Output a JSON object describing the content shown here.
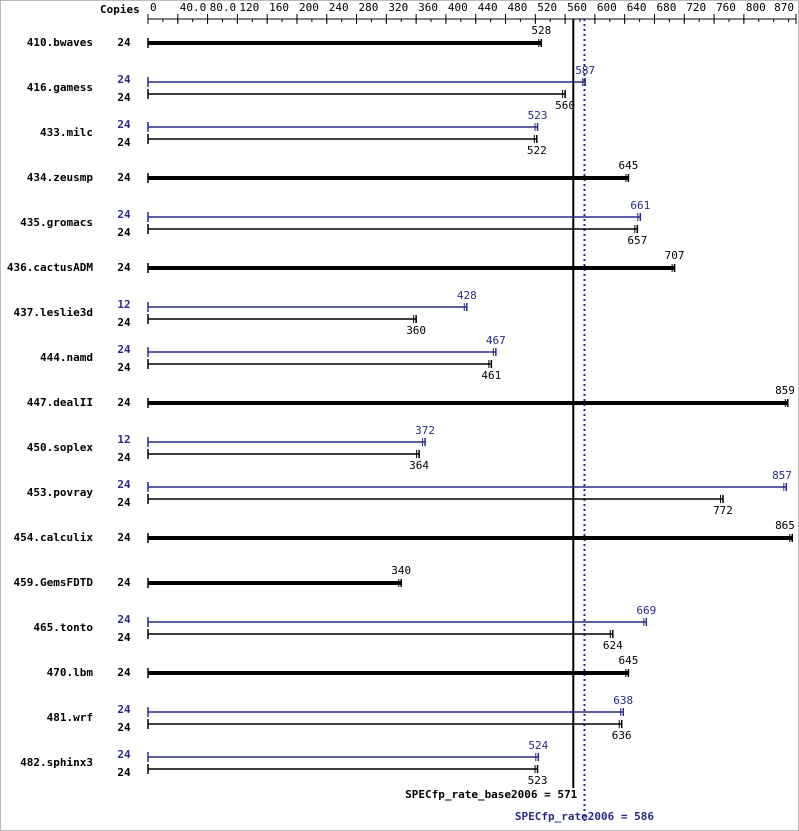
{
  "chart_data": {
    "type": "spec-bar",
    "copies_label": "Copies",
    "categories": [
      "410.bwaves",
      "416.gamess",
      "433.milc",
      "434.zeusmp",
      "435.gromacs",
      "436.cactusADM",
      "437.leslie3d",
      "444.namd",
      "447.dealII",
      "450.soplex",
      "453.povray",
      "454.calculix",
      "459.GemsFDTD",
      "465.tonto",
      "470.lbm",
      "481.wrf",
      "482.sphinx3"
    ],
    "series": [
      {
        "color": "#000000",
        "copies": [
          24,
          24,
          24,
          24,
          24,
          24,
          24,
          24,
          24,
          24,
          24,
          24,
          24,
          24,
          24,
          24,
          24
        ],
        "values": [
          528,
          560,
          522,
          645,
          657,
          707,
          360,
          461,
          859,
          364,
          772,
          865,
          340,
          624,
          645,
          636,
          523
        ]
      },
      {
        "color": "#2a2a8c",
        "copies": [
          null,
          24,
          24,
          null,
          24,
          null,
          12,
          24,
          null,
          12,
          24,
          null,
          null,
          24,
          null,
          24,
          24
        ],
        "values": [
          null,
          587,
          523,
          null,
          661,
          null,
          428,
          467,
          null,
          372,
          857,
          null,
          null,
          669,
          null,
          638,
          524
        ]
      }
    ],
    "xlim": [
      0,
      870
    ],
    "xticks": [
      0,
      {
        "value": 40,
        "label": "40.0"
      },
      {
        "value": 80,
        "label": "80.0"
      },
      120,
      160,
      200,
      240,
      280,
      320,
      360,
      400,
      440,
      480,
      520,
      560,
      600,
      640,
      680,
      720,
      760,
      800,
      870
    ],
    "reference_lines": [
      {
        "label": "SPECfp_rate_base2006 = 571",
        "value": 571,
        "color": "#000000",
        "dashed": false
      },
      {
        "label": "SPECfp_rate2006 = 586",
        "value": 586,
        "color": "#2a2a8c",
        "dashed": true
      }
    ]
  }
}
